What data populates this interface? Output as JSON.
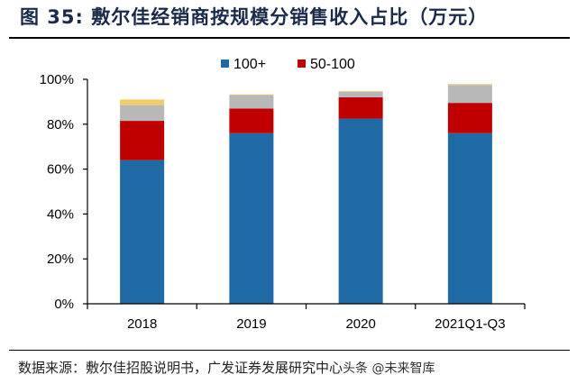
{
  "header": {
    "title": "图 35: 敷尔佳经销商按规模分销售收入占比（万元）"
  },
  "footer": {
    "source": "数据来源：敷尔佳招股说明书，广发证券发展研究中心",
    "watermark": "头条 @未来智库"
  },
  "chart_data": {
    "type": "bar",
    "stacked": true,
    "title": "敷尔佳经销商按规模分销售收入占比（万元）",
    "xlabel": "",
    "ylabel": "",
    "ylim": [
      0,
      100
    ],
    "yticks": [
      "0%",
      "20%",
      "40%",
      "60%",
      "80%",
      "100%"
    ],
    "ytick_values": [
      0,
      20,
      40,
      60,
      80,
      100
    ],
    "categories": [
      "2018",
      "2019",
      "2020",
      "2021Q1-Q3"
    ],
    "legend_position": "top",
    "grid": false,
    "series": [
      {
        "name": "100+",
        "color": "#1f6aa5",
        "values": [
          64,
          76,
          82.5,
          76
        ],
        "in_legend": true
      },
      {
        "name": "50-100",
        "color": "#c00000",
        "values": [
          17.5,
          11,
          9.5,
          13.5
        ],
        "in_legend": true
      },
      {
        "name": "other-gray",
        "color": "#b8b8b8",
        "values": [
          7,
          6,
          2.5,
          8
        ],
        "in_legend": false
      },
      {
        "name": "other-yellow",
        "color": "#f0cc6a",
        "values": [
          2.5,
          0.3,
          0.3,
          0.4
        ],
        "in_legend": false
      }
    ]
  }
}
